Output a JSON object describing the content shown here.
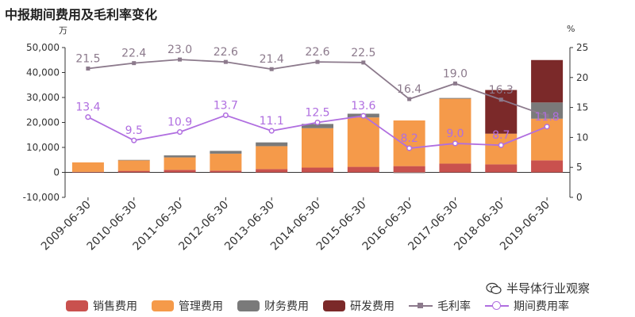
{
  "header": {
    "title": "中报期间费用及毛利率变化"
  },
  "watermark": {
    "text": "半导体行业观察",
    "icon": "wechat-icon"
  },
  "chart_data": {
    "type": "bar",
    "stacked": true,
    "left_axis": {
      "unit": "万",
      "ylim": [
        -10000,
        50000
      ],
      "ticks": [
        "-10,000",
        "0",
        "10,000",
        "20,000",
        "30,000",
        "40,000",
        "50,000"
      ],
      "tick_values": [
        -10000,
        0,
        10000,
        20000,
        30000,
        40000,
        50000
      ]
    },
    "right_axis": {
      "unit": "%",
      "ylim": [
        0,
        25
      ],
      "ticks": [
        "0",
        "5",
        "10",
        "15",
        "20",
        "25"
      ],
      "tick_values": [
        0,
        5,
        10,
        15,
        20,
        25
      ]
    },
    "categories": [
      "2009-06-30",
      "2010-06-30",
      "2011-06-30",
      "2012-06-30",
      "2013-06-30",
      "2014-06-30",
      "2015-06-30",
      "2016-06-30",
      "2017-06-30",
      "2018-06-30",
      "2019-06-30"
    ],
    "series": [
      {
        "name": "销售费用",
        "kind": "bar",
        "color": "#c9514e",
        "values": [
          200,
          600,
          1000,
          700,
          1300,
          1900,
          2200,
          2500,
          3500,
          3200,
          4800
        ]
      },
      {
        "name": "管理费用",
        "kind": "bar",
        "color": "#f59a4a",
        "values": [
          3800,
          4200,
          5000,
          6800,
          9200,
          15800,
          19800,
          18300,
          26000,
          12300,
          16700
        ]
      },
      {
        "name": "财务费用",
        "kind": "bar",
        "color": "#7a7a7a",
        "values": [
          0,
          200,
          800,
          1100,
          1500,
          1700,
          1500,
          -300,
          300,
          0,
          6500
        ]
      },
      {
        "name": "研发费用",
        "kind": "bar",
        "color": "#7b2929",
        "values": [
          0,
          0,
          0,
          0,
          0,
          0,
          0,
          0,
          0,
          17500,
          17000
        ]
      },
      {
        "name": "毛利率",
        "kind": "line",
        "axis": "right",
        "marker": "square",
        "color": "#8c7a8c",
        "values": [
          21.5,
          22.4,
          23.0,
          22.6,
          21.4,
          22.6,
          22.5,
          16.4,
          19.0,
          16.3,
          13.6
        ],
        "labels": [
          "21.5",
          "22.4",
          "23.0",
          "22.6",
          "21.4",
          "22.6",
          "22.5",
          "16.4",
          "19.0",
          "16.3",
          ""
        ]
      },
      {
        "name": "期间费用率",
        "kind": "line",
        "axis": "right",
        "marker": "circle",
        "color": "#b06ee0",
        "values": [
          13.4,
          9.5,
          10.9,
          13.7,
          11.1,
          12.5,
          13.6,
          8.2,
          9.0,
          8.7,
          11.8
        ],
        "labels": [
          "13.4",
          "9.5",
          "10.9",
          "13.7",
          "11.1",
          "12.5",
          "13.6",
          "8.2",
          "9.0",
          "8.7",
          "11.8"
        ]
      }
    ],
    "legend_position": "bottom",
    "grid": false
  }
}
